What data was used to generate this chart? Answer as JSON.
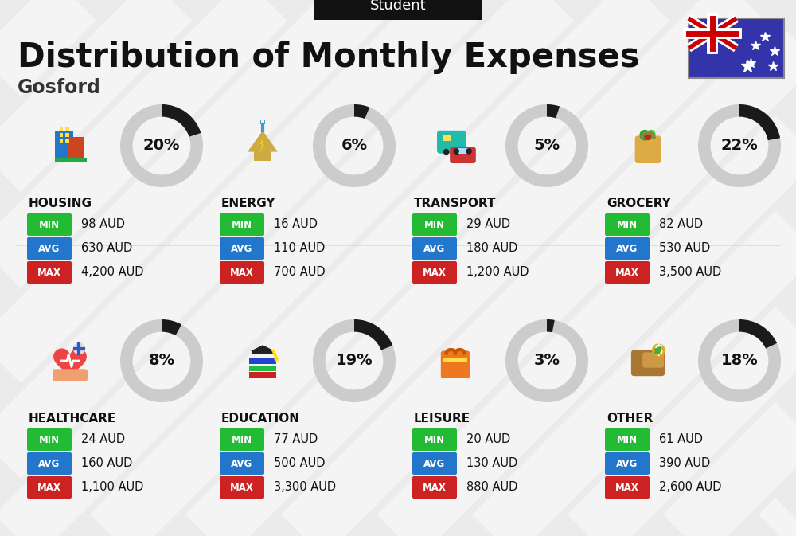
{
  "title": "Distribution of Monthly Expenses",
  "subtitle": "Gosford",
  "tab_label": "Student",
  "bg_color": "#ebebeb",
  "categories": [
    {
      "name": "HOUSING",
      "pct": 20,
      "min": "98 AUD",
      "avg": "630 AUD",
      "max": "4,200 AUD",
      "col": 0,
      "row": 0
    },
    {
      "name": "ENERGY",
      "pct": 6,
      "min": "16 AUD",
      "avg": "110 AUD",
      "max": "700 AUD",
      "col": 1,
      "row": 0
    },
    {
      "name": "TRANSPORT",
      "pct": 5,
      "min": "29 AUD",
      "avg": "180 AUD",
      "max": "1,200 AUD",
      "col": 2,
      "row": 0
    },
    {
      "name": "GROCERY",
      "pct": 22,
      "min": "82 AUD",
      "avg": "530 AUD",
      "max": "3,500 AUD",
      "col": 3,
      "row": 0
    },
    {
      "name": "HEALTHCARE",
      "pct": 8,
      "min": "24 AUD",
      "avg": "160 AUD",
      "max": "1,100 AUD",
      "col": 0,
      "row": 1
    },
    {
      "name": "EDUCATION",
      "pct": 19,
      "min": "77 AUD",
      "avg": "500 AUD",
      "max": "3,300 AUD",
      "col": 1,
      "row": 1
    },
    {
      "name": "LEISURE",
      "pct": 3,
      "min": "20 AUD",
      "avg": "130 AUD",
      "max": "880 AUD",
      "col": 2,
      "row": 1
    },
    {
      "name": "OTHER",
      "pct": 18,
      "min": "61 AUD",
      "avg": "390 AUD",
      "max": "2,600 AUD",
      "col": 3,
      "row": 1
    }
  ],
  "min_color": "#22bb33",
  "avg_color": "#2277cc",
  "max_color": "#cc2222",
  "donut_filled_color": "#1a1a1a",
  "donut_empty_color": "#cccccc",
  "stripe_color": "#ffffff",
  "stripe_alpha": 0.45,
  "tab_bg": "#111111",
  "tab_text_color": "#ffffff",
  "title_color": "#111111",
  "subtitle_color": "#333333"
}
